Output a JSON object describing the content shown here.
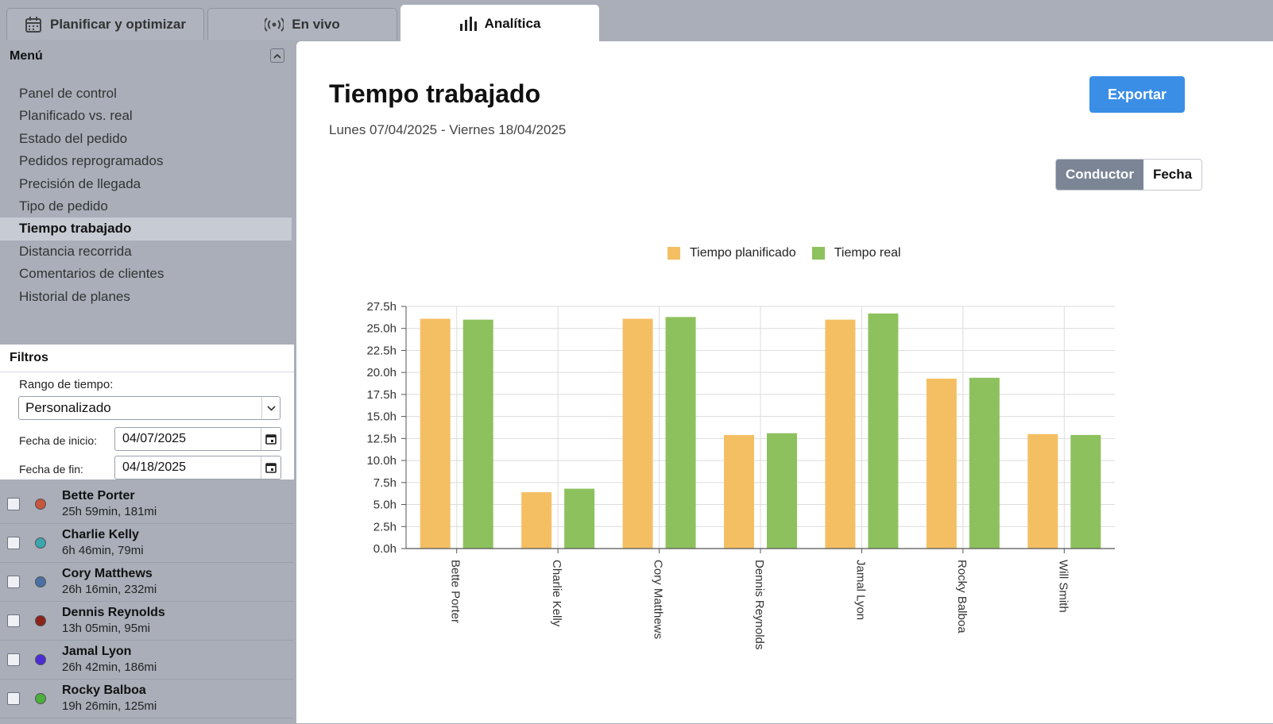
{
  "tabs": [
    {
      "label": "Planificar y optimizar",
      "icon": "calendar-icon",
      "active": false
    },
    {
      "label": "En vivo",
      "icon": "live-broadcast-icon",
      "active": false
    },
    {
      "label": "Analítica",
      "icon": "bar-chart-icon",
      "active": true
    }
  ],
  "menu": {
    "title": "Menú",
    "items": [
      {
        "label": "Panel de control"
      },
      {
        "label": "Planificado vs. real"
      },
      {
        "label": "Estado del pedido"
      },
      {
        "label": "Pedidos reprogramados"
      },
      {
        "label": "Precisión de llegada"
      },
      {
        "label": "Tipo de pedido"
      },
      {
        "label": "Tiempo trabajado",
        "active": true
      },
      {
        "label": "Distancia recorrida"
      },
      {
        "label": "Comentarios de clientes"
      },
      {
        "label": "Historial de planes"
      }
    ]
  },
  "filters": {
    "title": "Filtros",
    "range_label": "Rango de tiempo:",
    "range_value": "Personalizado",
    "start_label": "Fecha de inicio:",
    "start_value": "04/07/2025",
    "end_label": "Fecha de fin:",
    "end_value": "04/18/2025"
  },
  "drivers": [
    {
      "name": "Bette Porter",
      "stats": "25h 59min, 181mi",
      "color": "#c8553d"
    },
    {
      "name": "Charlie Kelly",
      "stats": "6h 46min, 79mi",
      "color": "#3aa6b0"
    },
    {
      "name": "Cory Matthews",
      "stats": "26h 16min, 232mi",
      "color": "#4a6fa5"
    },
    {
      "name": "Dennis Reynolds",
      "stats": "13h 05min, 95mi",
      "color": "#8b2318"
    },
    {
      "name": "Jamal Lyon",
      "stats": "26h 42min, 186mi",
      "color": "#4b2bd6"
    },
    {
      "name": "Rocky Balboa",
      "stats": "19h 26min, 125mi",
      "color": "#4caf3d"
    }
  ],
  "main": {
    "title": "Tiempo trabajado",
    "subtitle": "Lunes 07/04/2025 - Viernes 18/04/2025",
    "export_label": "Exportar",
    "toggle": {
      "option1": "Conductor",
      "option2": "Fecha",
      "selected": "Conductor"
    }
  },
  "chart_data": {
    "type": "bar",
    "categories": [
      "Bette Porter",
      "Charlie Kelly",
      "Cory Matthews",
      "Dennis Reynolds",
      "Jamal Lyon",
      "Rocky Balboa",
      "Will Smith"
    ],
    "series": [
      {
        "name": "Tiempo planificado",
        "color": "#f4bf63",
        "values": [
          26.1,
          6.4,
          26.1,
          12.9,
          26.0,
          19.3,
          13.0
        ]
      },
      {
        "name": "Tiempo real",
        "color": "#8dc15e",
        "values": [
          26.0,
          6.8,
          26.3,
          13.1,
          26.7,
          19.4,
          12.9
        ]
      }
    ],
    "ylim": [
      0,
      27.5
    ],
    "yticks": [
      "0.0h",
      "2.5h",
      "5.0h",
      "7.5h",
      "10.0h",
      "12.5h",
      "15.0h",
      "17.5h",
      "20.0h",
      "22.5h",
      "25.0h",
      "27.5h"
    ],
    "grid": true,
    "legend": "top-center"
  }
}
